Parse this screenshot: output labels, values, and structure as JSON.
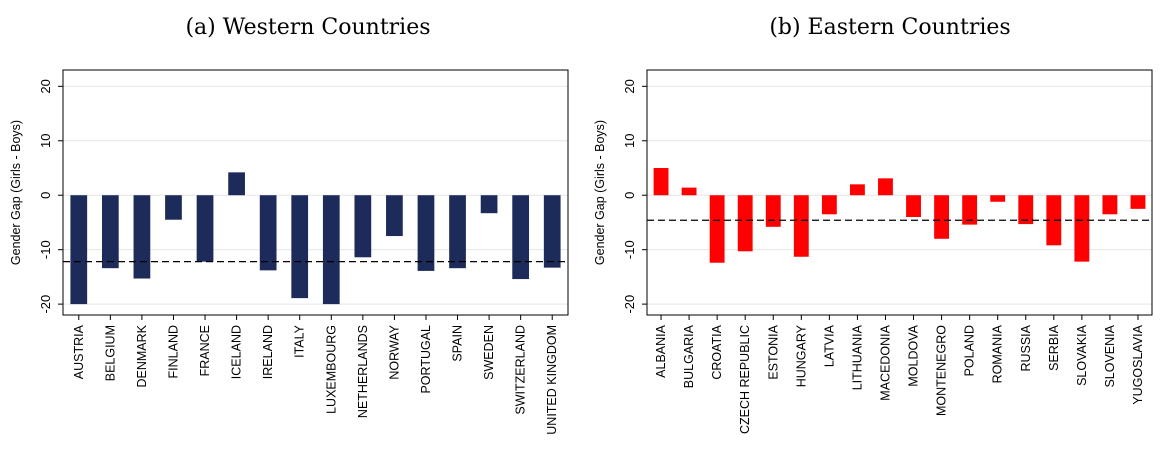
{
  "chart_data": [
    {
      "type": "bar",
      "title": "(a) Western Countries",
      "xlabel": "",
      "ylabel": "Gender Gap (Girls - Boys)",
      "ylim": [
        -22,
        23
      ],
      "yticks": [
        -20,
        -10,
        0,
        10,
        20
      ],
      "yticklabels": [
        "-20",
        "-10",
        "0",
        "10",
        "20"
      ],
      "grid": true,
      "color": "#1c2b5a",
      "reference_line": -12.2,
      "categories": [
        "AUSTRIA",
        "BELGIUM",
        "DENMARK",
        "FINLAND",
        "FRANCE",
        "ICELAND",
        "IRELAND",
        "ITALY",
        "LUXEMBOURG",
        "NETHERLANDS",
        "NORWAY",
        "PORTUGAL",
        "SPAIN",
        "SWEDEN",
        "SWITZERLAND",
        "UNITED KINGDOM"
      ],
      "values": [
        -20.0,
        -13.4,
        -15.3,
        -4.5,
        -12.2,
        4.2,
        -13.8,
        -18.9,
        -20.0,
        -11.4,
        -7.5,
        -13.9,
        -13.4,
        -3.3,
        -15.4,
        -13.3
      ]
    },
    {
      "type": "bar",
      "title": "(b) Eastern Countries",
      "xlabel": "",
      "ylabel": "Gender Gap (Girls - Boys)",
      "ylim": [
        -22,
        23
      ],
      "yticks": [
        -20,
        -10,
        0,
        10,
        20
      ],
      "yticklabels": [
        "-20",
        "-10",
        "0",
        "10",
        "20"
      ],
      "grid": true,
      "color": "#ff0000",
      "reference_line": -4.6,
      "categories": [
        "ALBANIA",
        "BULGARIA",
        "CROATIA",
        "CZECH REPUBLIC",
        "ESTONIA",
        "HUNGARY",
        "LATVIA",
        "LITHUANIA",
        "MACEDONIA",
        "MOLDOVA",
        "MONTENEGRO",
        "POLAND",
        "ROMANIA",
        "RUSSIA",
        "SERBIA",
        "SLOVAKIA",
        "SLOVENIA",
        "YUGOSLAVIA"
      ],
      "values": [
        5.0,
        1.4,
        -12.4,
        -10.3,
        -5.8,
        -11.3,
        -3.5,
        2.0,
        3.1,
        -4.0,
        -8.0,
        -5.4,
        -1.2,
        -5.3,
        -9.2,
        -12.2,
        -3.5,
        -2.5
      ]
    }
  ]
}
